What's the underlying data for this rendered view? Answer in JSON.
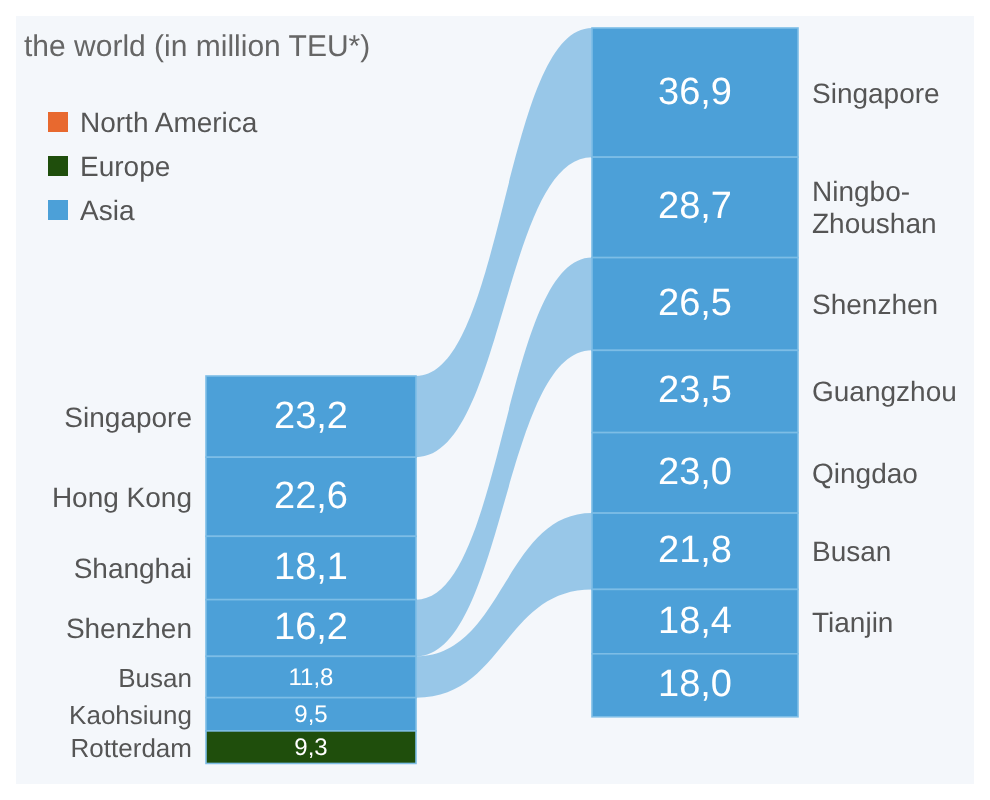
{
  "chart_data": [
    {
      "type": "other",
      "subtitle": "the world (in million TEU*)",
      "legend": "top left",
      "categories": [
        "Singapore",
        "Hong Kong",
        "Shanghai",
        "Shenzhen",
        "Busan",
        "Kaohsiung",
        "Rotterdam"
      ],
      "series": [
        {
          "name": "North America",
          "color": "#e8692f",
          "values": [
            null,
            null,
            null,
            null,
            null,
            null,
            null
          ]
        },
        {
          "name": "Europe",
          "color": "#1f4e0c",
          "values": [
            null,
            null,
            null,
            null,
            null,
            null,
            9.3
          ],
          "value_labels": [
            null,
            null,
            null,
            null,
            null,
            null,
            "9,3"
          ]
        },
        {
          "name": "Asia",
          "color": "#4ca0d8",
          "values": [
            23.2,
            22.6,
            18.1,
            16.2,
            11.8,
            9.5,
            null
          ],
          "value_labels": [
            "23,2",
            "22,6",
            "18,1",
            "16,2",
            "11,8",
            "9,5",
            null
          ]
        }
      ]
    },
    {
      "type": "other",
      "categories": [
        "Singapore",
        "Ningbo-Zhoushan",
        "Shenzhen",
        "Guangzhou",
        "Qingdao",
        "Busan",
        "Tianjin",
        null
      ],
      "series": [
        {
          "color": "#4ca0d8",
          "values": [
            36.9,
            28.7,
            26.5,
            23.5,
            23.0,
            21.8,
            18.4,
            18.0
          ],
          "value_labels": [
            "36,9",
            "28,7",
            "26,5",
            "23,5",
            "23,0",
            "21,8",
            "18,4",
            "18,0"
          ]
        }
      ]
    }
  ]
}
